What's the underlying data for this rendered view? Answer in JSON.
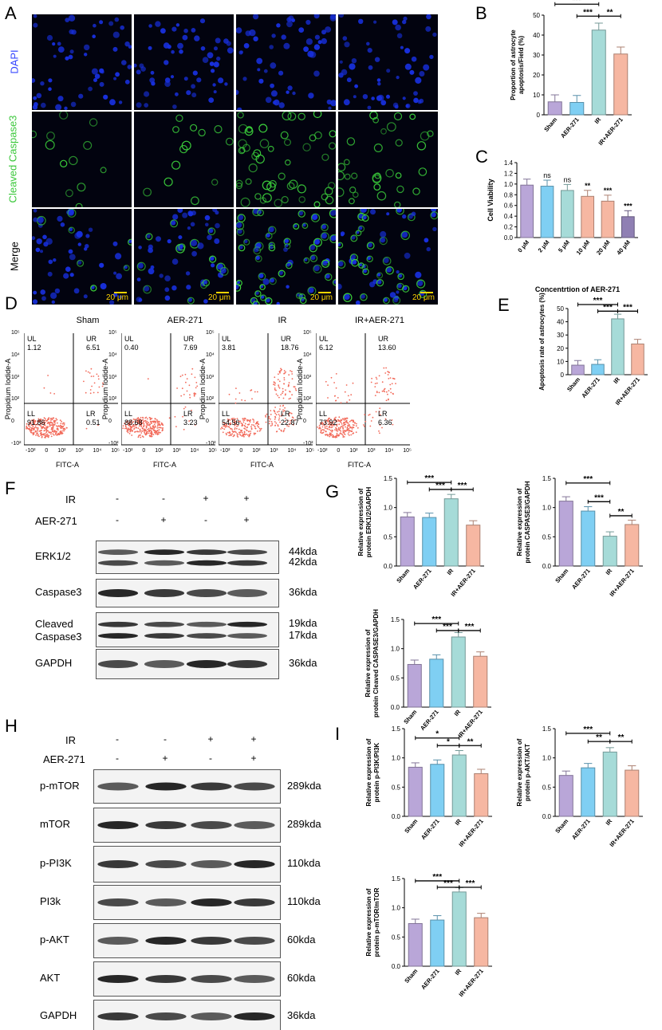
{
  "panels": {
    "A": "A",
    "B": "B",
    "C": "C",
    "D": "D",
    "E": "E",
    "F": "F",
    "G": "G",
    "H": "H",
    "I": "I"
  },
  "colors": {
    "sham": "#b9a6d8",
    "aer": "#7fcff3",
    "ir": "#a6dbd8",
    "iraer": "#f6b7a2",
    "c_dark": "#8f7fb3"
  },
  "A": {
    "columns": [
      "Sham",
      "AER-271",
      "IR",
      "IR+AER-271"
    ],
    "rows": [
      "DAPI",
      "Cleaved Caspase3",
      "Merge"
    ],
    "scale": "20 μm"
  },
  "groups": [
    "Sham",
    "AER-271",
    "IR",
    "IR+AER-271"
  ],
  "B": {
    "ylabel": "Proportion of astrocyte apoptosis/Field (%)",
    "yticks": [
      "0",
      "10",
      "20",
      "30",
      "40",
      "50"
    ],
    "chart_data": {
      "type": "bar",
      "categories": [
        "Sham",
        "AER-271",
        "IR",
        "IR+AER-271"
      ],
      "values": [
        6.5,
        6.2,
        42.5,
        30.5
      ],
      "ylim": [
        0,
        50
      ]
    },
    "sig": [
      "***",
      "***",
      "**"
    ]
  },
  "C": {
    "ylabel": "Cell Viability",
    "xlabel": "Concentrtion of AER-271",
    "yticks": [
      "0.0",
      "0.2",
      "0.4",
      "0.6",
      "0.8",
      "1.0",
      "1.2",
      "1.4"
    ],
    "chart_data": {
      "type": "bar",
      "categories": [
        "0 μM",
        "2 μM",
        "5 μM",
        "10 μM",
        "20 μM",
        "40 μM"
      ],
      "values": [
        0.98,
        0.96,
        0.88,
        0.77,
        0.68,
        0.39
      ],
      "ylim": [
        0,
        1.4
      ]
    },
    "sig": [
      "",
      "ns",
      "ns",
      "**",
      "***",
      "***"
    ]
  },
  "D": {
    "titles": [
      "Sham",
      "AER-271",
      "IR",
      "IR+AER-271"
    ],
    "ylabel": "Propidium Iodide-A",
    "xlabel": "FITC-A",
    "quadrants": [
      {
        "UL": "1.12",
        "UR": "6.51",
        "LL": "91.86",
        "LR": "0.51"
      },
      {
        "UL": "0.40",
        "UR": "7.69",
        "LL": "88.68",
        "LR": "3.23"
      },
      {
        "UL": "3.81",
        "UR": "18.76",
        "LL": "54.56",
        "LR": "22.87"
      },
      {
        "UL": "6.12",
        "UR": "13.60",
        "LL": "73.92",
        "LR": "6.36"
      }
    ],
    "qnames": {
      "UL": "UL",
      "UR": "UR",
      "LL": "LL",
      "LR": "LR"
    },
    "xticks": [
      "-10²",
      "0",
      "10²",
      "10³",
      "10⁴",
      "10⁵"
    ],
    "yticks": [
      "10⁵",
      "10⁴",
      "10³",
      "10²",
      "0",
      "-10²"
    ]
  },
  "E": {
    "ylabel": "Apoptosis rate of astrocytes (%)",
    "yticks": [
      "0",
      "10",
      "20",
      "30",
      "40",
      "50"
    ],
    "chart_data": {
      "type": "bar",
      "categories": [
        "Sham",
        "AER-271",
        "IR",
        "IR+AER-271"
      ],
      "values": [
        7.2,
        7.8,
        42.2,
        23.2
      ],
      "ylim": [
        0,
        50
      ]
    },
    "sig": [
      "***",
      "***",
      "***"
    ]
  },
  "F": {
    "ir_label": "IR",
    "aer_label": "AER-271",
    "ir": [
      "-",
      "-",
      "+",
      "+"
    ],
    "aer": [
      "-",
      "+",
      "-",
      "+"
    ],
    "rows": [
      {
        "name": "ERK1/2",
        "kda": [
          "44kda",
          "42kda"
        ]
      },
      {
        "name": "Caspase3",
        "kda": [
          "36kda"
        ]
      },
      {
        "name": "Cleaved\nCaspase3",
        "name1": "Cleaved",
        "name2": "Caspase3",
        "kda": [
          "19kda",
          "17kda"
        ]
      },
      {
        "name": "GAPDH",
        "kda": [
          "36kda"
        ]
      }
    ]
  },
  "G": {
    "g1": {
      "ylabel1": "Relative expression of",
      "ylabel2": "protein ERK1/2/GAPDH",
      "yticks": [
        "0.0",
        "0.5",
        "1.0",
        "1.5"
      ],
      "chart_data": {
        "type": "bar",
        "categories": [
          "Sham",
          "AER-271",
          "IR",
          "IR+AER-271"
        ],
        "values": [
          0.84,
          0.83,
          1.15,
          0.7
        ],
        "ylim": [
          0,
          1.5
        ]
      },
      "sig": [
        "***",
        "***",
        "***"
      ]
    },
    "g2": {
      "ylabel1": "Relative expression of",
      "ylabel2": "protein CASPASE3/GAPDH",
      "yticks": [
        "0.0",
        "0.5",
        "1.0",
        "1.5"
      ],
      "chart_data": {
        "type": "bar",
        "categories": [
          "Sham",
          "AER-271",
          "IR",
          "IR+AER-271"
        ],
        "values": [
          1.11,
          0.94,
          0.51,
          0.71
        ],
        "ylim": [
          0,
          1.5
        ]
      },
      "sig": [
        "***",
        "***",
        "**"
      ]
    },
    "g3": {
      "ylabel1": "Relative expression of",
      "ylabel2": "protein Cleaved CASPASE3/GAPDH",
      "yticks": [
        "0.0",
        "0.5",
        "1.0",
        "1.5"
      ],
      "chart_data": {
        "type": "bar",
        "categories": [
          "Sham",
          "AER-271",
          "IR",
          "IR+AER-271"
        ],
        "values": [
          0.73,
          0.82,
          1.2,
          0.87
        ],
        "ylim": [
          0,
          1.5
        ]
      },
      "sig": [
        "***",
        "***",
        "***"
      ]
    }
  },
  "H": {
    "ir_label": "IR",
    "aer_label": "AER-271",
    "ir": [
      "-",
      "-",
      "+",
      "+"
    ],
    "aer": [
      "-",
      "+",
      "-",
      "+"
    ],
    "rows": [
      {
        "name": "p-mTOR",
        "kda": "289kda"
      },
      {
        "name": "mTOR",
        "kda": "289kda"
      },
      {
        "name": "p-PI3K",
        "kda": "110kda"
      },
      {
        "name": "PI3k",
        "kda": "110kda"
      },
      {
        "name": "p-AKT",
        "kda": "60kda"
      },
      {
        "name": "AKT",
        "kda": "60kda"
      },
      {
        "name": "GAPDH",
        "kda": "36kda"
      }
    ]
  },
  "I": {
    "i1": {
      "ylabel1": "Relative expression of",
      "ylabel2": "protein p-PI3K/PI3K",
      "yticks": [
        "0.0",
        "0.5",
        "1.0",
        "1.5"
      ],
      "chart_data": {
        "type": "bar",
        "categories": [
          "Sham",
          "AER-271",
          "IR",
          "IR+AER-271"
        ],
        "values": [
          0.84,
          0.89,
          1.05,
          0.73
        ],
        "ylim": [
          0,
          1.5
        ]
      },
      "sig": [
        "*",
        "*",
        "**"
      ]
    },
    "i2": {
      "ylabel1": "Relative expression of",
      "ylabel2": "protein p-AKT/AKT",
      "yticks": [
        "0.0",
        "0.5",
        "1.0",
        "1.5"
      ],
      "chart_data": {
        "type": "bar",
        "categories": [
          "Sham",
          "AER-271",
          "IR",
          "IR+AER-271"
        ],
        "values": [
          0.7,
          0.83,
          1.1,
          0.79
        ],
        "ylim": [
          0,
          1.5
        ]
      },
      "sig": [
        "***",
        "**",
        "**"
      ]
    },
    "i3": {
      "ylabel1": "Relative expression of",
      "ylabel2": "protein p-mTOR/mTOR",
      "yticks": [
        "0.0",
        "0.5",
        "1.0",
        "1.5"
      ],
      "chart_data": {
        "type": "bar",
        "categories": [
          "Sham",
          "AER-271",
          "IR",
          "IR+AER-271"
        ],
        "values": [
          0.73,
          0.79,
          1.27,
          0.83
        ],
        "ylim": [
          0,
          1.5
        ]
      },
      "sig": [
        "***",
        "***",
        "***"
      ]
    }
  }
}
